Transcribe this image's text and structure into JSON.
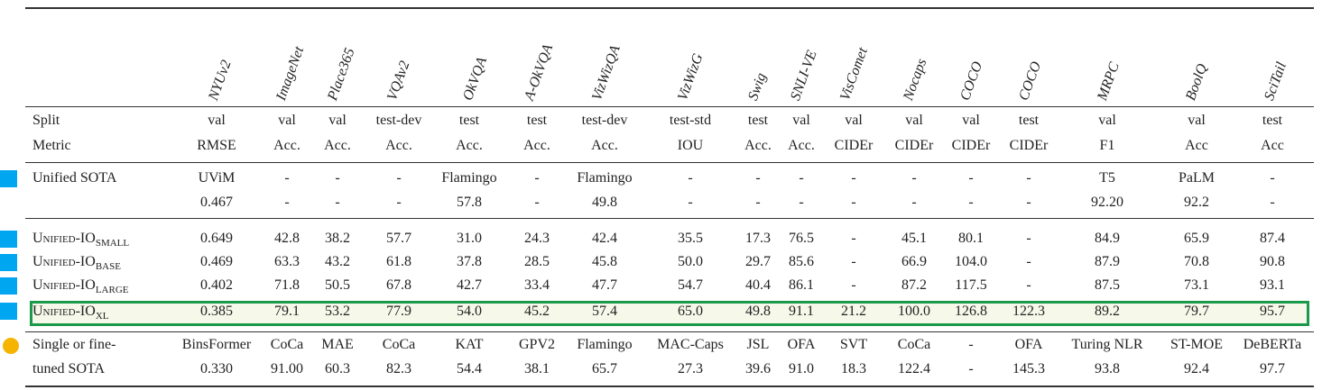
{
  "columns": [
    "NYUv2",
    "ImageNet",
    "Place365",
    "VQAv2",
    "OkVQA",
    "A-OkVQA",
    "VizWizQA",
    "VizWizG",
    "Swig",
    "SNLI-VE",
    "VisComet",
    "Nocaps",
    "COCO",
    "COCO",
    "MRPC",
    "BoolQ",
    "SciTail"
  ],
  "split_label": "Split",
  "metric_label": "Metric",
  "split": [
    "val",
    "val",
    "val",
    "test-dev",
    "test",
    "test",
    "test-dev",
    "test-std",
    "test",
    "val",
    "val",
    "val",
    "val",
    "test",
    "val",
    "val",
    "test"
  ],
  "metric": [
    "RMSE",
    "Acc.",
    "Acc.",
    "Acc.",
    "Acc.",
    "Acc.",
    "Acc.",
    "IOU",
    "Acc.",
    "Acc.",
    "CIDEr",
    "CIDEr",
    "CIDEr",
    "CIDEr",
    "F1",
    "Acc",
    "Acc"
  ],
  "unified_sota": {
    "label": "Unified SOTA",
    "models": [
      "UViM",
      "-",
      "-",
      "-",
      "Flamingo",
      "-",
      "Flamingo",
      "-",
      "-",
      "-",
      "-",
      "-",
      "-",
      "-",
      "T5",
      "PaLM",
      "-"
    ],
    "scores": [
      "0.467",
      "-",
      "-",
      "-",
      "57.8",
      "-",
      "49.8",
      "-",
      "-",
      "-",
      "-",
      "-",
      "-",
      "-",
      "92.20",
      "92.2",
      "-"
    ]
  },
  "unified_io": [
    {
      "name": "Unified-IO",
      "sub": "SMALL",
      "values": [
        "0.649",
        "42.8",
        "38.2",
        "57.7",
        "31.0",
        "24.3",
        "42.4",
        "35.5",
        "17.3",
        "76.5",
        "-",
        "45.1",
        "80.1",
        "-",
        "84.9",
        "65.9",
        "87.4"
      ]
    },
    {
      "name": "Unified-IO",
      "sub": "BASE",
      "values": [
        "0.469",
        "63.3",
        "43.2",
        "61.8",
        "37.8",
        "28.5",
        "45.8",
        "50.0",
        "29.7",
        "85.6",
        "-",
        "66.9",
        "104.0",
        "-",
        "87.9",
        "70.8",
        "90.8"
      ]
    },
    {
      "name": "Unified-IO",
      "sub": "LARGE",
      "values": [
        "0.402",
        "71.8",
        "50.5",
        "67.8",
        "42.7",
        "33.4",
        "47.7",
        "54.7",
        "40.4",
        "86.1",
        "-",
        "87.2",
        "117.5",
        "-",
        "87.5",
        "73.1",
        "93.1"
      ]
    },
    {
      "name": "Unified-IO",
      "sub": "XL",
      "values": [
        "0.385",
        "79.1",
        "53.2",
        "77.9",
        "54.0",
        "45.2",
        "57.4",
        "65.0",
        "49.8",
        "91.1",
        "21.2",
        "100.0",
        "126.8",
        "122.3",
        "89.2",
        "79.7",
        "95.7"
      ]
    }
  ],
  "single_sota": {
    "label_line1": "Single or fine-",
    "label_line2": "tuned SOTA",
    "models": [
      "BinsFormer",
      "CoCa",
      "MAE",
      "CoCa",
      "KAT",
      "GPV2",
      "Flamingo",
      "MAC-Caps",
      "JSL",
      "OFA",
      "SVT",
      "CoCa",
      "-",
      "OFA",
      "Turing NLR",
      "ST-MOE",
      "DeBERTa"
    ],
    "scores": [
      "0.330",
      "91.00",
      "60.3",
      "82.3",
      "54.4",
      "38.1",
      "65.7",
      "27.3",
      "39.6",
      "91.0",
      "18.3",
      "122.4",
      "-",
      "145.3",
      "93.8",
      "92.4",
      "97.7"
    ]
  },
  "colors": {
    "group_marker": "#00a6f0",
    "single_marker": "#f5b400",
    "highlight_border": "#1a9a4a"
  }
}
